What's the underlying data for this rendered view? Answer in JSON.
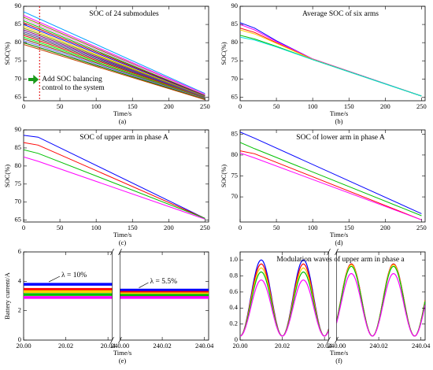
{
  "chart_data": [
    {
      "type": "line",
      "title": "SOC of 24 submodules",
      "caption": "(a)",
      "x_label": "Time/s",
      "y_label": "SOC(%)",
      "xlim": [
        0,
        255
      ],
      "xticks": [
        0,
        50,
        100,
        150,
        200,
        250
      ],
      "ylim": [
        64,
        90
      ],
      "yticks": [
        65,
        70,
        75,
        80,
        85,
        90
      ],
      "event_x": 22,
      "annotation": [
        "Add SOC balancing",
        "control to the system"
      ],
      "x": [
        0,
        250
      ],
      "series": [
        {
          "color": "#00a0ff",
          "values": [
            88.5,
            66
          ]
        },
        {
          "color": "#ff00ff",
          "values": [
            87.5,
            65.8
          ]
        },
        {
          "color": "#808000",
          "values": [
            87,
            65.6
          ]
        },
        {
          "color": "#00c000",
          "values": [
            86,
            65.5
          ]
        },
        {
          "color": "#c00000",
          "values": [
            85.5,
            65.4
          ]
        },
        {
          "color": "#0000ff",
          "values": [
            85,
            65.3
          ]
        },
        {
          "color": "#ffcc00",
          "values": [
            84.5,
            65.2
          ]
        },
        {
          "color": "#008080",
          "values": [
            84,
            65.1
          ]
        },
        {
          "color": "#800080",
          "values": [
            83.5,
            65
          ]
        },
        {
          "color": "#ff8000",
          "values": [
            83,
            65
          ]
        },
        {
          "color": "#404040",
          "values": [
            82.5,
            64.9
          ]
        },
        {
          "color": "#00e0e0",
          "values": [
            82,
            64.8
          ]
        },
        {
          "color": "#ff0000",
          "values": [
            82,
            64.8
          ]
        },
        {
          "color": "#00ff00",
          "values": [
            81.5,
            64.7
          ]
        },
        {
          "color": "#a000ff",
          "values": [
            81,
            64.6
          ]
        },
        {
          "color": "#806000",
          "values": [
            81,
            64.6
          ]
        },
        {
          "color": "#ff60a0",
          "values": [
            80.5,
            64.5
          ]
        },
        {
          "color": "#6080ff",
          "values": [
            80.5,
            64.5
          ]
        },
        {
          "color": "#e0a000",
          "values": [
            80,
            64.4
          ]
        },
        {
          "color": "#008000",
          "values": [
            80,
            64.4
          ]
        },
        {
          "color": "#c04000",
          "values": [
            79.5,
            64.3
          ]
        },
        {
          "color": "#4040c0",
          "values": [
            83,
            65
          ]
        },
        {
          "color": "#a0a000",
          "values": [
            84,
            65.2
          ]
        },
        {
          "color": "#ff80ff",
          "values": [
            86.5,
            65.7
          ]
        }
      ]
    },
    {
      "type": "line",
      "title": "Average SOC of six arms",
      "caption": "(b)",
      "x_label": "Time/s",
      "y_label": "SOC(%)",
      "xlim": [
        0,
        255
      ],
      "xticks": [
        0,
        50,
        100,
        150,
        200,
        250
      ],
      "ylim": [
        64,
        90
      ],
      "yticks": [
        65,
        70,
        75,
        80,
        85,
        90
      ],
      "x": [
        0,
        20,
        50,
        100,
        250
      ],
      "series": [
        {
          "color": "#0000ff",
          "values": [
            85.5,
            84,
            80.5,
            75.5,
            65.3
          ]
        },
        {
          "color": "#ff00ff",
          "values": [
            85,
            83.5,
            80.3,
            75.5,
            65.3
          ]
        },
        {
          "color": "#ff0000",
          "values": [
            84,
            82.8,
            80,
            75.4,
            65.3
          ]
        },
        {
          "color": "#ffcc00",
          "values": [
            83.5,
            82.4,
            79.8,
            75.4,
            65.3
          ]
        },
        {
          "color": "#00c000",
          "values": [
            82,
            81,
            79,
            75.3,
            65.3
          ]
        },
        {
          "color": "#00e0e0",
          "values": [
            81.5,
            80.7,
            78.8,
            75.3,
            65.3
          ]
        }
      ]
    },
    {
      "type": "line",
      "title": "SOC of upper arm in phase A",
      "caption": "(c)",
      "x_label": "Time/s",
      "y_label": "SOC(%)",
      "xlim": [
        0,
        255
      ],
      "xticks": [
        0,
        50,
        100,
        150,
        200,
        250
      ],
      "ylim": [
        64.5,
        90
      ],
      "yticks": [
        65,
        70,
        75,
        80,
        85,
        90
      ],
      "x": [
        0,
        20,
        250
      ],
      "series": [
        {
          "color": "#0000ff",
          "values": [
            88.5,
            88,
            65.5
          ]
        },
        {
          "color": "#ff0000",
          "values": [
            86.5,
            85.8,
            65.5
          ]
        },
        {
          "color": "#00c000",
          "values": [
            84.5,
            83.5,
            65.5
          ]
        },
        {
          "color": "#ff00ff",
          "values": [
            82.5,
            81.3,
            65.3
          ]
        }
      ]
    },
    {
      "type": "line",
      "title": "SOC of lower arm in phase A",
      "caption": "(d)",
      "x_label": "Time/s",
      "y_label": "SOC(%)",
      "xlim": [
        0,
        255
      ],
      "xticks": [
        0,
        50,
        100,
        150,
        200,
        250
      ],
      "ylim": [
        64,
        86
      ],
      "yticks": [
        70,
        75,
        80,
        85
      ],
      "x": [
        0,
        20,
        250
      ],
      "series": [
        {
          "color": "#0000ff",
          "values": [
            85.5,
            84,
            66
          ]
        },
        {
          "color": "#00c000",
          "values": [
            83,
            81.5,
            65.5
          ]
        },
        {
          "color": "#ff0000",
          "values": [
            81,
            80.3,
            64.5
          ]
        },
        {
          "color": "#ff00ff",
          "values": [
            80.5,
            79.3,
            64.5
          ]
        }
      ]
    },
    {
      "type": "band",
      "caption": "(e)",
      "x_label": "Time/s",
      "y_label": "Battery current/A",
      "ylim": [
        0,
        6
      ],
      "yticks": [
        0,
        2,
        4,
        6
      ],
      "segments": [
        {
          "xlim": [
            20,
            20.042
          ],
          "xticks": [
            {
              "value": 20,
              "label": "20.00"
            },
            {
              "value": 20.02,
              "label": "20.02"
            },
            {
              "value": 20.04,
              "label": "20.04"
            }
          ]
        },
        {
          "xlim": [
            240,
            240.042
          ],
          "xticks": [
            {
              "value": 240,
              "label": "240.00"
            },
            {
              "value": 240.02,
              "label": "240.02"
            },
            {
              "value": 240.04,
              "label": "240.04"
            }
          ]
        }
      ],
      "annotations": [
        "λ = 10%",
        "λ = 5.5%"
      ],
      "series": [
        {
          "color": "#0000ff",
          "values": [
            3.8,
            3.4
          ]
        },
        {
          "color": "#ff0000",
          "values": [
            3.45,
            3.25
          ]
        },
        {
          "color": "#ffcc00",
          "values": [
            3.3,
            3.15
          ]
        },
        {
          "color": "#00c000",
          "values": [
            3.1,
            3.05
          ]
        },
        {
          "color": "#ff00ff",
          "values": [
            2.9,
            2.9
          ]
        }
      ]
    },
    {
      "type": "wave",
      "title": "Modulation waves of upper arm in phase a",
      "caption": "(f)",
      "x_label": "Time/s",
      "ylim": [
        0,
        1.1
      ],
      "yticks": [
        0,
        0.2,
        0.4,
        0.6,
        0.8,
        {
          "value": 1,
          "label": "1.0"
        }
      ],
      "segments": [
        {
          "xlim": [
            20,
            20.042
          ],
          "xticks": [
            {
              "value": 20,
              "label": "20.00"
            },
            {
              "value": 20.02,
              "label": "20.02"
            },
            {
              "value": 20.04,
              "label": "20.04"
            }
          ]
        },
        {
          "xlim": [
            240,
            240.042
          ],
          "xticks": [
            {
              "value": 240,
              "label": "240.00"
            },
            {
              "value": 240.02,
              "label": "240.02"
            },
            {
              "value": 240.04,
              "label": "240.04"
            }
          ]
        }
      ],
      "period": 0.02,
      "peak_times": [
        20.01,
        240.007
      ],
      "trough": 0.05,
      "series": [
        {
          "color": "#0000ff",
          "values": [
            1.0,
            0.95
          ]
        },
        {
          "color": "#ff0000",
          "values": [
            0.95,
            0.95
          ]
        },
        {
          "color": "#ffcc00",
          "values": [
            0.9,
            0.94
          ]
        },
        {
          "color": "#00c000",
          "values": [
            0.85,
            0.92
          ]
        },
        {
          "color": "#ff00ff",
          "values": [
            0.75,
            0.83
          ]
        }
      ]
    }
  ]
}
